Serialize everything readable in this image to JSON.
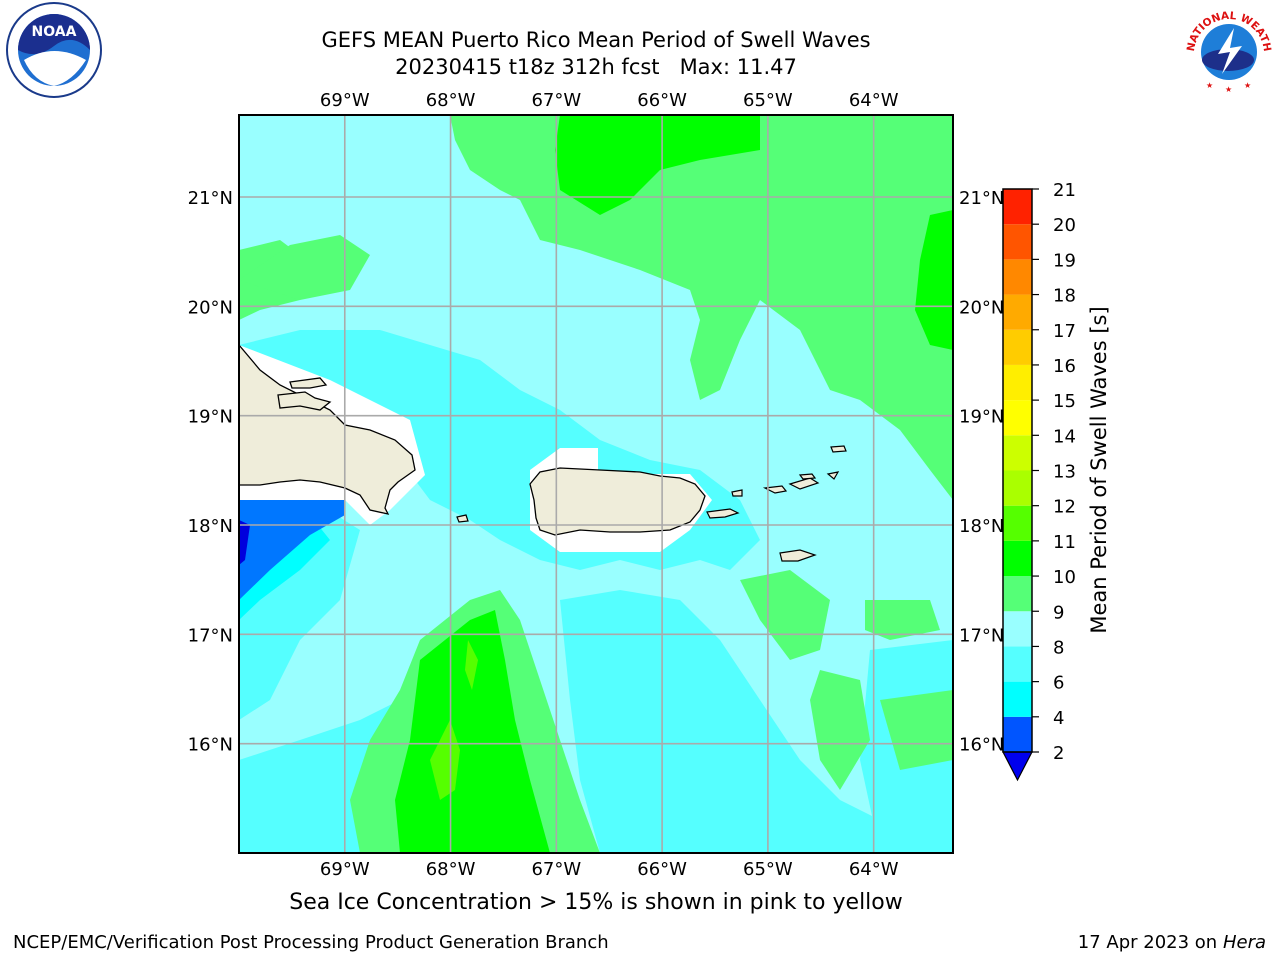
{
  "title": {
    "line1": "GEFS MEAN Puerto Rico Mean Period of Swell Waves",
    "line2": "20230415 t18z 312h fcst   Max: 11.47"
  },
  "map": {
    "lon_ticks": [
      "69°W",
      "68°W",
      "67°W",
      "66°W",
      "65°W",
      "64°W"
    ],
    "lat_ticks": [
      "21°N",
      "20°N",
      "19°N",
      "18°N",
      "17°N",
      "16°N"
    ],
    "lon_range": [
      -70.0,
      -63.25
    ],
    "lat_range": [
      15.0,
      21.75
    ],
    "land_color": "#efedda"
  },
  "colorbar": {
    "label": "Mean Period of Swell Waves [s]",
    "ticks": [
      "2",
      "4",
      "6",
      "8",
      "9",
      "10",
      "11",
      "12",
      "13",
      "14",
      "15",
      "16",
      "17",
      "18",
      "19",
      "20",
      "21"
    ],
    "colors": [
      "#0055ff",
      "#00ffff",
      "#55ffff",
      "#99ffff",
      "#55ff77",
      "#00ff00",
      "#55ff00",
      "#aaff00",
      "#ccff00",
      "#ffff00",
      "#ffee00",
      "#ffcc00",
      "#ffaa00",
      "#ff8800",
      "#ff5500",
      "#ff2200"
    ],
    "under_color": "#0000ee"
  },
  "note": "Sea Ice Concentration > 15% is shown in pink to yellow",
  "footer": {
    "left": "NCEP/EMC/Verification Post Processing Product Generation Branch",
    "right_prefix": "17 Apr 2023 on ",
    "right_host": "Hera"
  },
  "logos": {
    "left_icon": "noaa-logo",
    "left_text": "NOAA",
    "right_icon": "nws-logo",
    "right_text": "NATIONAL WEATHER SERVICE"
  }
}
